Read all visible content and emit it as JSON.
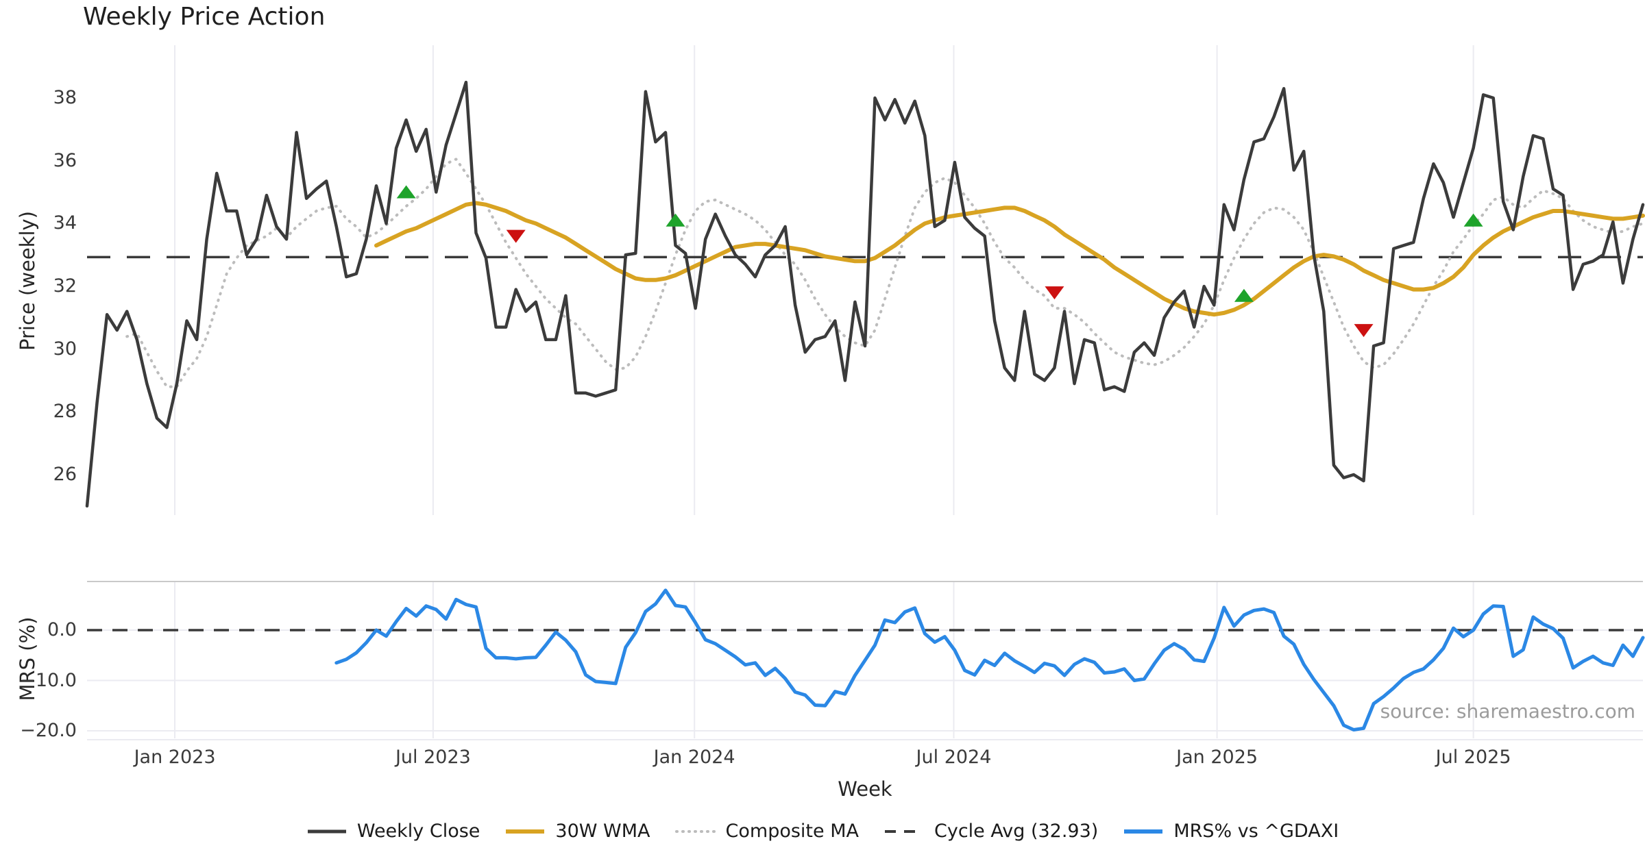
{
  "title": "Weekly Price Action",
  "watermark": "source: sharemaestro.com",
  "legend": {
    "weekly_close": "Weekly Close",
    "wma": "30W WMA",
    "composite": "Composite MA",
    "cycle_avg": "Cycle Avg (32.93)",
    "mrs": "MRS% vs ^GDAXI"
  },
  "colors": {
    "close": "#3b3b3b",
    "wma": "#d8a322",
    "composite": "#bcbcbc",
    "dashed": "#3a3a3a",
    "mrs": "#2b88e5",
    "buy": "#1ea32b",
    "sell": "#cc1111",
    "grid": "#ebebf1",
    "spine": "#c9c9c9",
    "watermark": "#9b9b9b"
  },
  "chart_data": [
    {
      "type": "line",
      "title": "Weekly Price Action",
      "xlabel": "Week",
      "ylabel": "Price (weekly)",
      "grid": "vertical-only",
      "legend_position": "bottom-center",
      "yticks": [
        38,
        36,
        34,
        32,
        30,
        28,
        26
      ],
      "ylim": [
        24.7,
        39.7
      ],
      "xtick_labels": [
        "Jan 2023",
        "Jul 2023",
        "Jan 2024",
        "Jul 2024",
        "Jan 2025",
        "Jul 2025"
      ],
      "xtick_weeks": [
        8.8,
        34.7,
        60.9,
        86.9,
        113.3,
        139.0
      ],
      "cycle_avg": 32.93,
      "series": [
        {
          "name": "Weekly Close",
          "start_week": 0,
          "values": [
            25.0,
            28.3,
            31.1,
            30.6,
            31.2,
            30.3,
            28.9,
            27.8,
            27.5,
            28.9,
            30.9,
            30.3,
            33.5,
            35.6,
            34.4,
            34.4,
            33.0,
            33.5,
            34.9,
            33.9,
            33.5,
            36.9,
            34.8,
            35.1,
            35.35,
            33.9,
            32.3,
            32.4,
            33.5,
            35.2,
            34.0,
            36.4,
            37.3,
            36.3,
            37.0,
            35.0,
            36.5,
            37.5,
            38.5,
            33.7,
            32.9,
            30.7,
            30.7,
            31.9,
            31.2,
            31.5,
            30.3,
            30.3,
            31.7,
            28.6,
            28.6,
            28.5,
            28.6,
            28.7,
            33.0,
            33.05,
            38.2,
            36.6,
            36.9,
            33.3,
            33.05,
            31.3,
            33.5,
            34.3,
            33.6,
            33.0,
            32.7,
            32.3,
            33.0,
            33.3,
            33.9,
            31.4,
            29.9,
            30.3,
            30.4,
            30.9,
            29.0,
            31.5,
            30.1,
            38.0,
            37.3,
            37.95,
            37.2,
            37.9,
            36.8,
            33.9,
            34.1,
            35.95,
            34.2,
            33.85,
            33.6,
            30.9,
            29.4,
            29.0,
            31.2,
            29.2,
            29.0,
            29.4,
            31.2,
            28.9,
            30.3,
            30.2,
            28.7,
            28.8,
            28.65,
            29.9,
            30.2,
            29.8,
            31.0,
            31.5,
            31.85,
            30.7,
            32.0,
            31.4,
            34.6,
            33.8,
            35.4,
            36.6,
            36.7,
            37.4,
            38.3,
            35.7,
            36.3,
            33.0,
            31.2,
            26.3,
            25.9,
            26.0,
            25.8,
            30.1,
            30.2,
            33.2,
            33.3,
            33.4,
            34.8,
            35.9,
            35.3,
            34.2,
            35.3,
            36.4,
            38.1,
            38.0,
            34.7,
            33.8,
            35.5,
            36.8,
            36.7,
            35.1,
            34.9,
            31.9,
            32.7,
            32.8,
            33.0,
            34.05,
            32.1,
            33.5,
            34.6
          ]
        },
        {
          "name": "30W WMA",
          "start_week": 29,
          "values": [
            33.3,
            33.45,
            33.6,
            33.75,
            33.85,
            34.0,
            34.15,
            34.3,
            34.45,
            34.6,
            34.65,
            34.6,
            34.5,
            34.4,
            34.25,
            34.1,
            34.0,
            33.85,
            33.7,
            33.55,
            33.35,
            33.15,
            32.95,
            32.75,
            32.55,
            32.4,
            32.25,
            32.2,
            32.2,
            32.25,
            32.35,
            32.5,
            32.65,
            32.8,
            32.95,
            33.1,
            33.25,
            33.3,
            33.35,
            33.35,
            33.3,
            33.25,
            33.2,
            33.15,
            33.05,
            32.95,
            32.9,
            32.85,
            32.8,
            32.8,
            32.9,
            33.1,
            33.3,
            33.55,
            33.8,
            34.0,
            34.1,
            34.2,
            34.25,
            34.3,
            34.35,
            34.4,
            34.45,
            34.5,
            34.5,
            34.4,
            34.25,
            34.1,
            33.9,
            33.65,
            33.45,
            33.25,
            33.05,
            32.85,
            32.6,
            32.4,
            32.2,
            32.0,
            31.8,
            31.6,
            31.45,
            31.3,
            31.2,
            31.15,
            31.1,
            31.15,
            31.25,
            31.4,
            31.6,
            31.85,
            32.1,
            32.35,
            32.6,
            32.8,
            32.95,
            33.0,
            32.95,
            32.85,
            32.7,
            32.5,
            32.35,
            32.2,
            32.1,
            32.0,
            31.9,
            31.9,
            31.95,
            32.1,
            32.3,
            32.6,
            33.0,
            33.3,
            33.55,
            33.75,
            33.9,
            34.05,
            34.2,
            34.3,
            34.4,
            34.4,
            34.35,
            34.3,
            34.25,
            34.2,
            34.15,
            34.15,
            34.2,
            34.25
          ]
        },
        {
          "name": "Composite MA",
          "start_week": 4,
          "values": [
            30.4,
            30.5,
            29.9,
            29.3,
            28.8,
            28.8,
            29.3,
            29.7,
            30.4,
            31.4,
            32.4,
            32.9,
            33.3,
            33.45,
            33.6,
            33.85,
            33.55,
            33.9,
            34.15,
            34.4,
            34.5,
            34.55,
            34.15,
            33.9,
            33.55,
            33.7,
            33.95,
            34.25,
            34.55,
            34.8,
            35.1,
            35.5,
            35.9,
            36.05,
            35.6,
            35.1,
            34.6,
            34.0,
            33.4,
            32.9,
            32.4,
            32.0,
            31.6,
            31.3,
            31.0,
            30.8,
            30.4,
            30.0,
            29.6,
            29.35,
            29.4,
            29.75,
            30.4,
            31.2,
            32.1,
            33.0,
            33.8,
            34.4,
            34.7,
            34.75,
            34.6,
            34.45,
            34.3,
            34.1,
            33.8,
            33.4,
            33.0,
            32.7,
            32.2,
            31.6,
            31.1,
            30.7,
            30.4,
            30.2,
            30.1,
            30.6,
            31.6,
            32.6,
            33.6,
            34.5,
            35.0,
            35.3,
            35.45,
            35.3,
            34.9,
            34.5,
            34.0,
            33.4,
            32.9,
            32.6,
            32.2,
            31.9,
            31.7,
            31.3,
            31.3,
            31.1,
            30.85,
            30.5,
            30.2,
            29.9,
            29.75,
            29.65,
            29.55,
            29.5,
            29.6,
            29.8,
            30.05,
            30.4,
            30.8,
            31.4,
            32.2,
            32.9,
            33.5,
            34.0,
            34.35,
            34.5,
            34.45,
            34.2,
            33.8,
            33.1,
            32.3,
            31.5,
            30.7,
            30.1,
            29.6,
            29.4,
            29.5,
            29.85,
            30.3,
            30.8,
            31.4,
            32.0,
            32.5,
            33.1,
            33.5,
            33.95,
            34.3,
            34.75,
            34.85,
            34.6,
            34.5,
            34.8,
            35.05,
            34.95,
            34.8,
            34.4,
            34.1,
            33.9,
            33.8,
            33.7,
            33.75,
            33.9,
            34.0
          ]
        }
      ],
      "markers": {
        "buy": [
          {
            "week": 32,
            "value": 35.0
          },
          {
            "week": 59,
            "value": 34.1
          },
          {
            "week": 116,
            "value": 31.7
          },
          {
            "week": 139,
            "value": 34.1
          }
        ],
        "sell": [
          {
            "week": 43,
            "value": 33.6
          },
          {
            "week": 97,
            "value": 31.8
          },
          {
            "week": 128,
            "value": 30.6
          }
        ]
      }
    },
    {
      "type": "line",
      "title": "",
      "xlabel": "Week",
      "ylabel": "MRS (%)",
      "grid": "both-light",
      "ytick_labels": [
        "0.0",
        "−10.0",
        "−20.0"
      ],
      "ytick_values": [
        0,
        -10,
        -20
      ],
      "ylim": [
        -21.5,
        9.7
      ],
      "zero_line_dashed": true,
      "series": [
        {
          "name": "MRS% vs ^GDAXI",
          "start_week": 25,
          "values": [
            -6.5,
            -5.8,
            -4.5,
            -2.5,
            0.0,
            -1.2,
            1.7,
            4.3,
            2.8,
            4.8,
            4.1,
            2.2,
            6.1,
            5.1,
            4.6,
            -3.6,
            -5.5,
            -5.5,
            -5.7,
            -5.5,
            -5.4,
            -3.0,
            -0.4,
            -2.0,
            -4.3,
            -8.9,
            -10.2,
            -10.4,
            -10.6,
            -3.4,
            -0.5,
            3.7,
            5.2,
            7.9,
            4.9,
            4.6,
            1.5,
            -1.9,
            -2.7,
            -4.0,
            -5.3,
            -6.9,
            -6.5,
            -9.0,
            -7.6,
            -9.6,
            -12.3,
            -12.9,
            -14.9,
            -15.0,
            -12.2,
            -12.7,
            -9.0,
            -6.0,
            -3.0,
            2.0,
            1.5,
            3.6,
            4.4,
            -0.7,
            -2.4,
            -1.3,
            -4.0,
            -8.0,
            -8.9,
            -6.0,
            -7.0,
            -4.6,
            -6.1,
            -7.2,
            -8.4,
            -6.6,
            -7.1,
            -9.0,
            -6.8,
            -5.7,
            -6.4,
            -8.5,
            -8.3,
            -7.7,
            -10.0,
            -9.7,
            -6.7,
            -4.0,
            -2.7,
            -3.8,
            -5.9,
            -6.2,
            -1.6,
            4.5,
            0.8,
            3.0,
            3.9,
            4.2,
            3.5,
            -1.2,
            -2.8,
            -6.8,
            -9.8,
            -12.4,
            -15.0,
            -18.9,
            -19.8,
            -19.5,
            -14.6,
            -13.2,
            -11.5,
            -9.6,
            -8.4,
            -7.7,
            -5.9,
            -3.6,
            0.4,
            -1.3,
            0.0,
            3.2,
            4.8,
            4.7,
            -5.2,
            -3.9,
            2.6,
            1.2,
            0.3,
            -1.6,
            -7.5,
            -6.2,
            -5.2,
            -6.5,
            -7.0,
            -3.0,
            -5.2,
            -1.5
          ]
        }
      ]
    }
  ]
}
